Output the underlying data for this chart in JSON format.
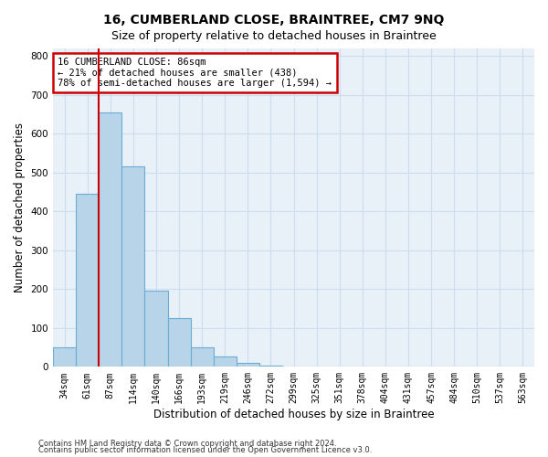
{
  "title": "16, CUMBERLAND CLOSE, BRAINTREE, CM7 9NQ",
  "subtitle": "Size of property relative to detached houses in Braintree",
  "xlabel": "Distribution of detached houses by size in Braintree",
  "ylabel": "Number of detached properties",
  "categories": [
    "34sqm",
    "61sqm",
    "87sqm",
    "114sqm",
    "140sqm",
    "166sqm",
    "193sqm",
    "219sqm",
    "246sqm",
    "272sqm",
    "299sqm",
    "325sqm",
    "351sqm",
    "378sqm",
    "404sqm",
    "431sqm",
    "457sqm",
    "484sqm",
    "510sqm",
    "537sqm",
    "563sqm"
  ],
  "values": [
    50,
    445,
    655,
    515,
    195,
    125,
    50,
    27,
    10,
    3,
    0,
    0,
    0,
    0,
    0,
    0,
    0,
    0,
    0,
    0,
    0
  ],
  "bar_color": "#b8d4e8",
  "bar_edge_color": "#6aadd5",
  "annotation_text": "16 CUMBERLAND CLOSE: 86sqm\n← 21% of detached houses are smaller (438)\n78% of semi-detached houses are larger (1,594) →",
  "annotation_box_color": "#ffffff",
  "annotation_box_edge_color": "#cc0000",
  "vline_color": "#cc0000",
  "grid_color": "#ccdded",
  "background_color": "#e8f0f8",
  "ylim": [
    0,
    820
  ],
  "yticks": [
    0,
    100,
    200,
    300,
    400,
    500,
    600,
    700,
    800
  ],
  "footer1": "Contains HM Land Registry data © Crown copyright and database right 2024.",
  "footer2": "Contains public sector information licensed under the Open Government Licence v3.0.",
  "title_fontsize": 10,
  "subtitle_fontsize": 9,
  "xlabel_fontsize": 8.5,
  "ylabel_fontsize": 8.5,
  "annot_fontsize": 7.5,
  "tick_fontsize": 7
}
